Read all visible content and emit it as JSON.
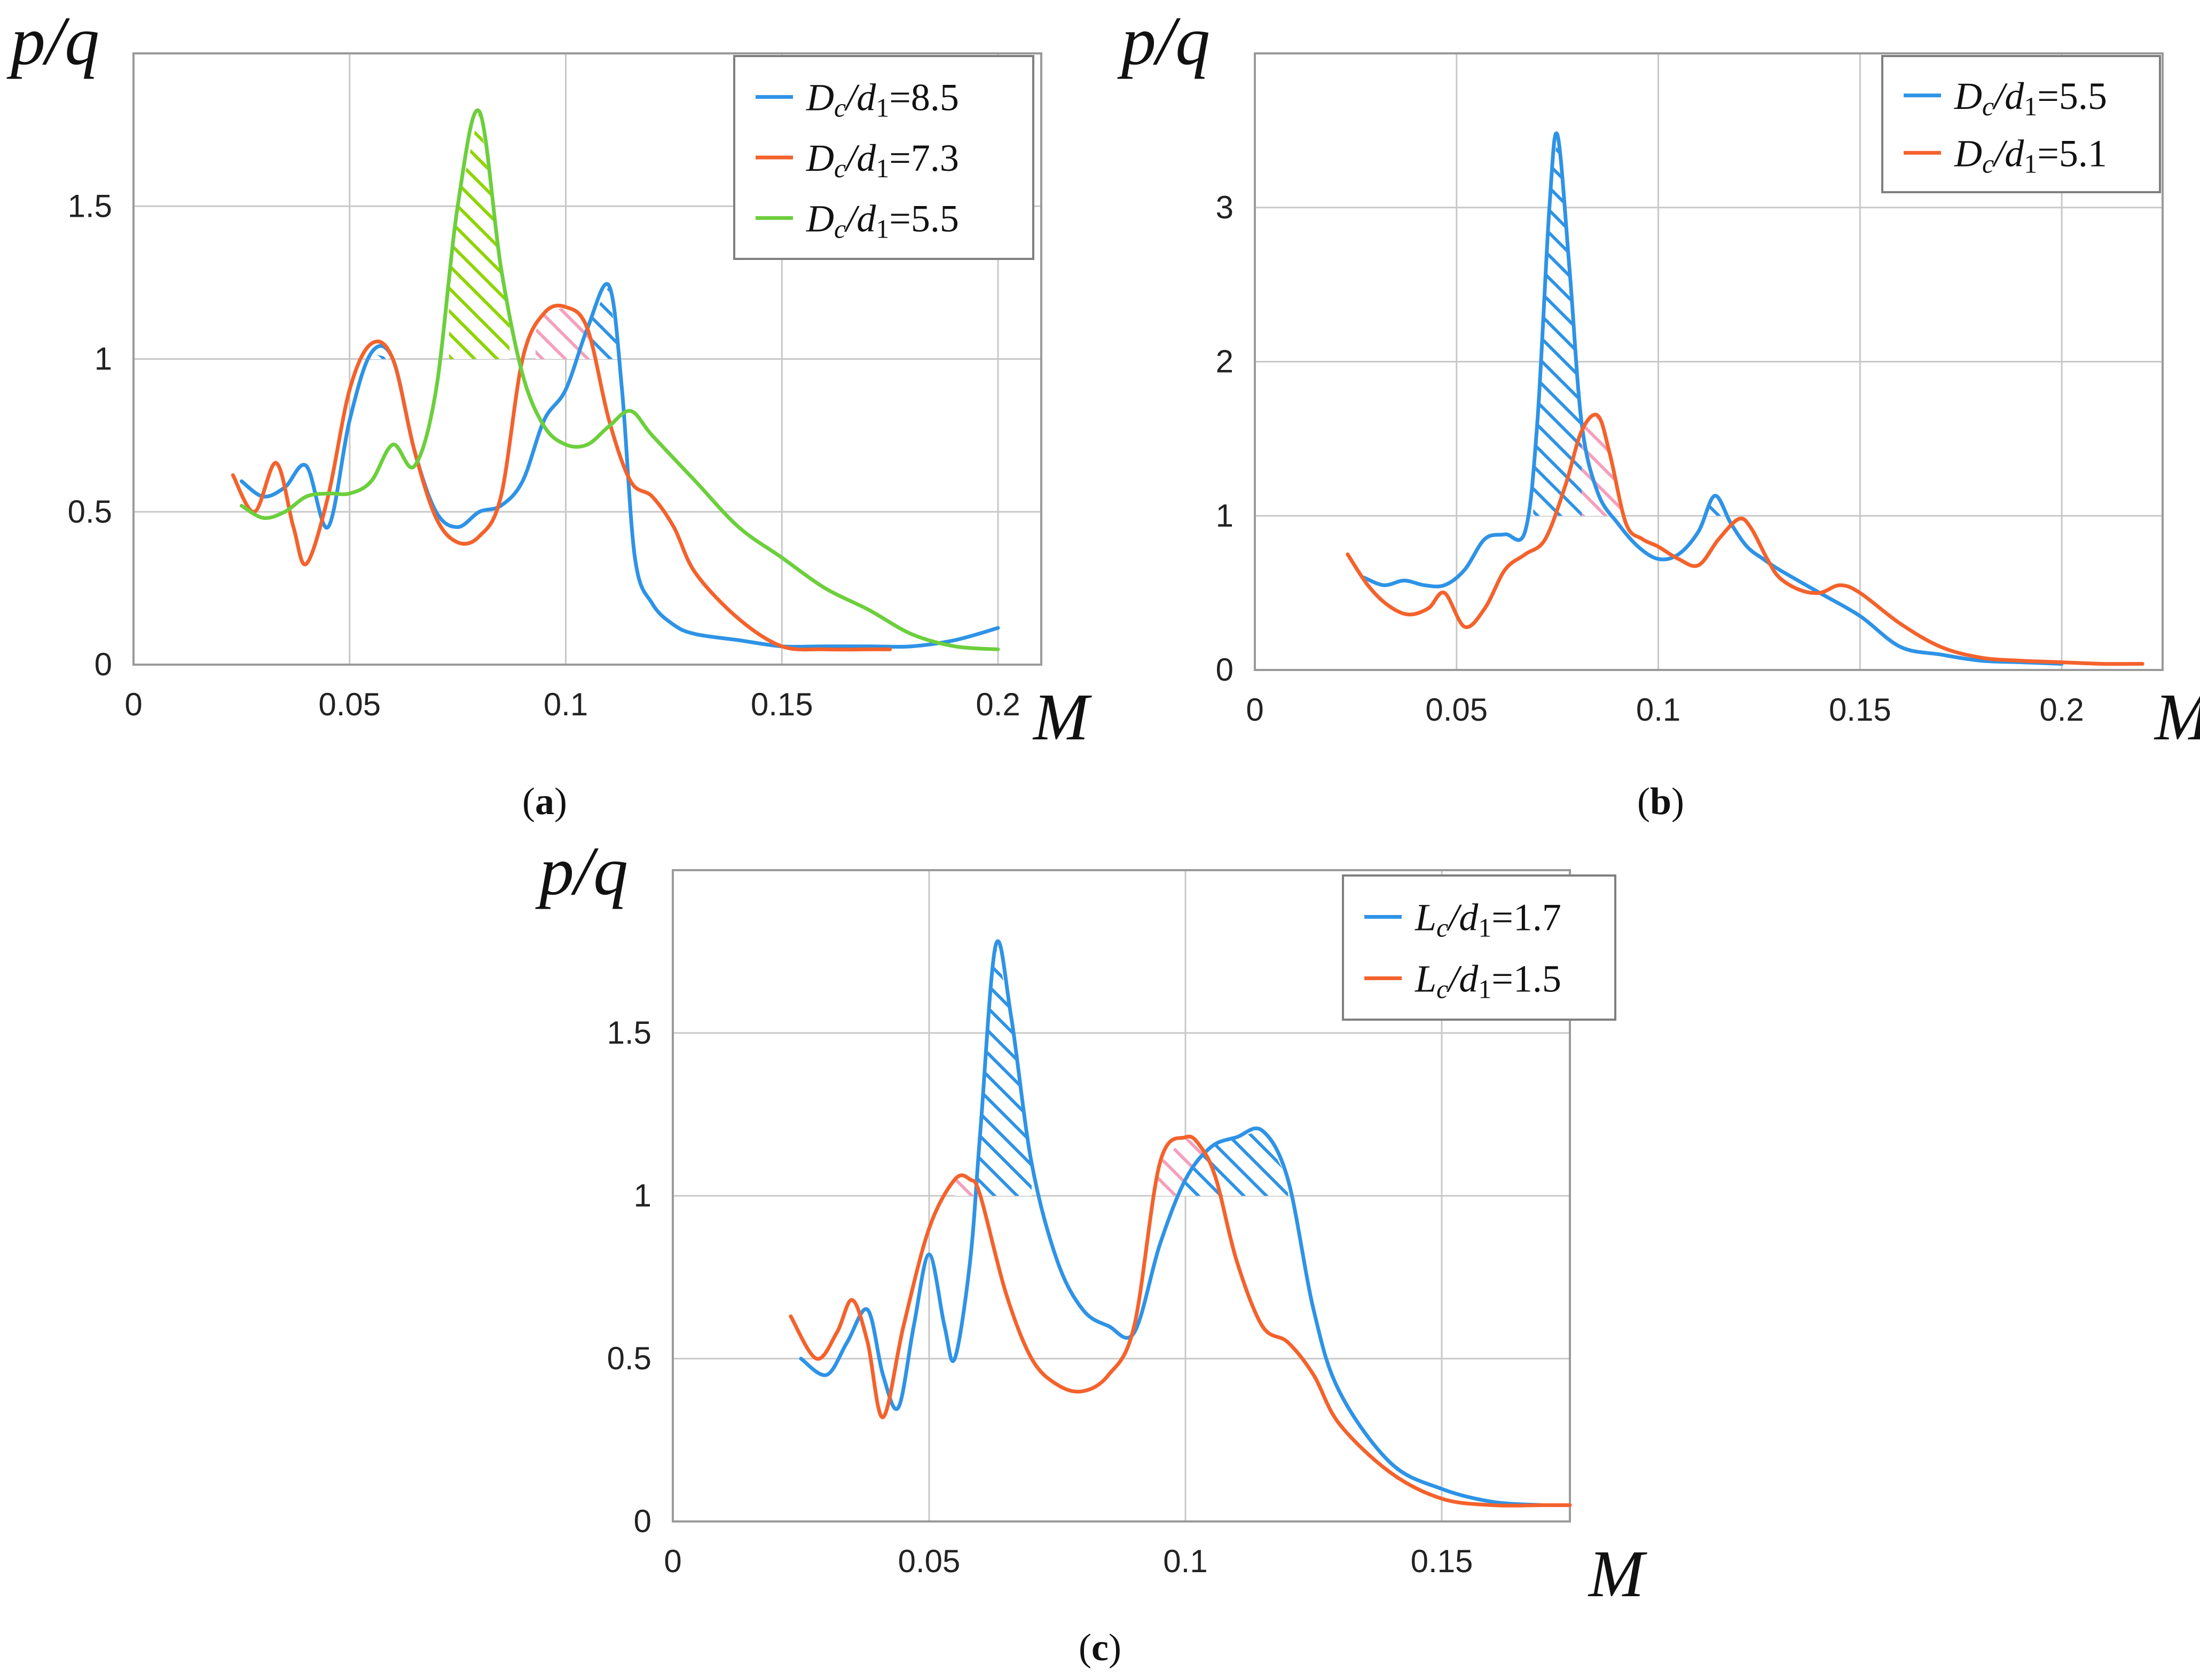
{
  "chart_data": [
    {
      "type": "line",
      "panel": "a",
      "caption_letter": "a",
      "ylabel": "p/q",
      "xlabel": "M",
      "xlim": [
        0,
        0.21
      ],
      "ylim": [
        0,
        2.0
      ],
      "x_ticks": [
        "0",
        "0.05",
        "0.1",
        "0.15",
        "0.2"
      ],
      "x_tick_values": [
        0,
        0.05,
        0.1,
        0.15,
        0.2
      ],
      "y_ticks": [
        "0",
        "0.5",
        "1",
        "1.5"
      ],
      "y_tick_values": [
        0,
        0.5,
        1,
        1.5
      ],
      "grid": true,
      "legend_position": "top-right",
      "series": [
        {
          "name": "Dc/d1=8.5",
          "legend_var": "D",
          "legend_sub": "c",
          "legend_div": "/d",
          "legend_sub2": "1",
          "legend_val": "=8.5",
          "color": "#2e93e6",
          "x": [
            0.025,
            0.03,
            0.035,
            0.04,
            0.045,
            0.05,
            0.055,
            0.06,
            0.065,
            0.07,
            0.075,
            0.08,
            0.085,
            0.09,
            0.095,
            0.1,
            0.105,
            0.11,
            0.113,
            0.116,
            0.12,
            0.125,
            0.13,
            0.14,
            0.15,
            0.16,
            0.17,
            0.18,
            0.19,
            0.2
          ],
          "y": [
            0.6,
            0.55,
            0.58,
            0.65,
            0.45,
            0.8,
            1.02,
            1.0,
            0.7,
            0.5,
            0.45,
            0.5,
            0.52,
            0.6,
            0.8,
            0.9,
            1.1,
            1.24,
            0.9,
            0.35,
            0.2,
            0.13,
            0.1,
            0.08,
            0.06,
            0.06,
            0.06,
            0.06,
            0.08,
            0.12
          ]
        },
        {
          "name": "Dc/d1=7.3",
          "legend_var": "D",
          "legend_sub": "c",
          "legend_div": "/d",
          "legend_sub2": "1",
          "legend_val": "=7.3",
          "color": "#f4622c",
          "x": [
            0.023,
            0.028,
            0.033,
            0.037,
            0.04,
            0.045,
            0.05,
            0.055,
            0.06,
            0.065,
            0.07,
            0.075,
            0.08,
            0.085,
            0.09,
            0.095,
            0.1,
            0.105,
            0.11,
            0.115,
            0.12,
            0.125,
            0.13,
            0.14,
            0.15,
            0.16,
            0.17,
            0.175
          ],
          "y": [
            0.62,
            0.5,
            0.66,
            0.45,
            0.33,
            0.55,
            0.9,
            1.05,
            1.0,
            0.7,
            0.48,
            0.4,
            0.42,
            0.55,
            1.0,
            1.15,
            1.17,
            1.1,
            0.8,
            0.6,
            0.55,
            0.45,
            0.3,
            0.15,
            0.06,
            0.05,
            0.05,
            0.05
          ]
        },
        {
          "name": "Dc/d1=5.5",
          "legend_var": "D",
          "legend_sub": "c",
          "legend_div": "/d",
          "legend_sub2": "1",
          "legend_val": "=5.5",
          "color": "#6ccf3c",
          "x": [
            0.025,
            0.03,
            0.035,
            0.04,
            0.045,
            0.05,
            0.055,
            0.06,
            0.065,
            0.07,
            0.075,
            0.08,
            0.085,
            0.09,
            0.095,
            0.1,
            0.105,
            0.11,
            0.115,
            0.12,
            0.13,
            0.14,
            0.15,
            0.16,
            0.17,
            0.18,
            0.19,
            0.2
          ],
          "y": [
            0.52,
            0.48,
            0.5,
            0.55,
            0.56,
            0.56,
            0.6,
            0.72,
            0.65,
            0.9,
            1.5,
            1.81,
            1.3,
            0.95,
            0.78,
            0.72,
            0.72,
            0.78,
            0.83,
            0.75,
            0.6,
            0.45,
            0.35,
            0.25,
            0.18,
            0.1,
            0.06,
            0.05
          ]
        }
      ]
    },
    {
      "type": "line",
      "panel": "b",
      "caption_letter": "b",
      "ylabel": "p/q",
      "xlabel": "M",
      "xlim": [
        0,
        0.225
      ],
      "ylim": [
        0,
        4.0
      ],
      "x_ticks": [
        "0",
        "0.05",
        "0.1",
        "0.15",
        "0.2"
      ],
      "x_tick_values": [
        0,
        0.05,
        0.1,
        0.15,
        0.2
      ],
      "y_ticks": [
        "0",
        "1",
        "2",
        "3"
      ],
      "y_tick_values": [
        0,
        1,
        2,
        3
      ],
      "grid": true,
      "legend_position": "top-right",
      "series": [
        {
          "name": "Dc/d1=5.5",
          "legend_var": "D",
          "legend_sub": "c",
          "legend_div": "/d",
          "legend_sub2": "1",
          "legend_val": "=5.5",
          "color": "#2e93e6",
          "x": [
            0.027,
            0.032,
            0.037,
            0.042,
            0.047,
            0.052,
            0.057,
            0.062,
            0.067,
            0.07,
            0.073,
            0.075,
            0.078,
            0.081,
            0.085,
            0.09,
            0.095,
            0.1,
            0.105,
            0.11,
            0.114,
            0.118,
            0.122,
            0.126,
            0.13,
            0.14,
            0.15,
            0.16,
            0.17,
            0.18,
            0.19,
            0.2
          ],
          "y": [
            0.6,
            0.55,
            0.58,
            0.55,
            0.55,
            0.65,
            0.85,
            0.88,
            0.9,
            1.6,
            3.0,
            3.47,
            2.6,
            1.6,
            1.15,
            0.95,
            0.8,
            0.72,
            0.75,
            0.9,
            1.13,
            0.95,
            0.8,
            0.72,
            0.65,
            0.5,
            0.35,
            0.15,
            0.1,
            0.06,
            0.05,
            0.04
          ]
        },
        {
          "name": "Dc/d1=5.1",
          "legend_var": "D",
          "legend_sub": "c",
          "legend_div": "/d",
          "legend_sub2": "1",
          "legend_val": "=5.1",
          "color": "#f4622c",
          "x": [
            0.023,
            0.028,
            0.033,
            0.038,
            0.043,
            0.047,
            0.052,
            0.057,
            0.062,
            0.067,
            0.072,
            0.077,
            0.081,
            0.085,
            0.088,
            0.092,
            0.096,
            0.1,
            0.105,
            0.11,
            0.115,
            0.12,
            0.123,
            0.127,
            0.13,
            0.135,
            0.14,
            0.145,
            0.15,
            0.16,
            0.17,
            0.18,
            0.19,
            0.2,
            0.21,
            0.22
          ],
          "y": [
            0.75,
            0.55,
            0.42,
            0.36,
            0.4,
            0.5,
            0.28,
            0.4,
            0.65,
            0.75,
            0.85,
            1.2,
            1.55,
            1.65,
            1.4,
            0.95,
            0.85,
            0.8,
            0.72,
            0.68,
            0.85,
            0.98,
            0.92,
            0.72,
            0.6,
            0.52,
            0.5,
            0.55,
            0.5,
            0.3,
            0.15,
            0.08,
            0.06,
            0.05,
            0.04,
            0.04
          ]
        }
      ]
    },
    {
      "type": "line",
      "panel": "c",
      "caption_letter": "c",
      "ylabel": "p/q",
      "xlabel": "M",
      "xlim": [
        0,
        0.175
      ],
      "ylim": [
        0,
        2.0
      ],
      "x_ticks": [
        "0",
        "0.05",
        "0.1",
        "0.15"
      ],
      "x_tick_values": [
        0,
        0.05,
        0.1,
        0.15
      ],
      "y_ticks": [
        "0",
        "0.5",
        "1",
        "1.5"
      ],
      "y_tick_values": [
        0,
        0.5,
        1,
        1.5
      ],
      "grid": true,
      "legend_position": "top-right",
      "series": [
        {
          "name": "Lc/d1=1.7",
          "legend_var": "L",
          "legend_sub": "c",
          "legend_div": "/d",
          "legend_sub2": "1",
          "legend_val": "=1.7",
          "color": "#2e93e6",
          "x": [
            0.025,
            0.03,
            0.034,
            0.038,
            0.041,
            0.044,
            0.047,
            0.05,
            0.053,
            0.055,
            0.058,
            0.06,
            0.063,
            0.066,
            0.07,
            0.075,
            0.08,
            0.085,
            0.09,
            0.095,
            0.1,
            0.105,
            0.11,
            0.115,
            0.12,
            0.125,
            0.13,
            0.14,
            0.15,
            0.16,
            0.17
          ],
          "y": [
            0.5,
            0.45,
            0.55,
            0.65,
            0.45,
            0.35,
            0.6,
            0.82,
            0.6,
            0.5,
            0.8,
            1.2,
            1.77,
            1.55,
            1.1,
            0.8,
            0.65,
            0.6,
            0.58,
            0.85,
            1.05,
            1.15,
            1.18,
            1.2,
            1.05,
            0.65,
            0.4,
            0.18,
            0.1,
            0.06,
            0.05
          ]
        },
        {
          "name": "Lc/d1=1.5",
          "legend_var": "L",
          "legend_sub": "c",
          "legend_div": "/d",
          "legend_sub2": "1",
          "legend_val": "=1.5",
          "color": "#f4622c",
          "x": [
            0.023,
            0.028,
            0.032,
            0.035,
            0.038,
            0.041,
            0.045,
            0.05,
            0.055,
            0.058,
            0.06,
            0.065,
            0.07,
            0.075,
            0.08,
            0.085,
            0.09,
            0.095,
            0.1,
            0.103,
            0.106,
            0.11,
            0.115,
            0.12,
            0.125,
            0.13,
            0.14,
            0.15,
            0.16,
            0.17,
            0.175
          ],
          "y": [
            0.63,
            0.5,
            0.58,
            0.68,
            0.55,
            0.32,
            0.6,
            0.9,
            1.05,
            1.05,
            1.0,
            0.7,
            0.5,
            0.42,
            0.4,
            0.45,
            0.6,
            1.1,
            1.18,
            1.15,
            1.05,
            0.8,
            0.6,
            0.55,
            0.45,
            0.3,
            0.15,
            0.07,
            0.05,
            0.05,
            0.05
          ]
        }
      ]
    }
  ]
}
